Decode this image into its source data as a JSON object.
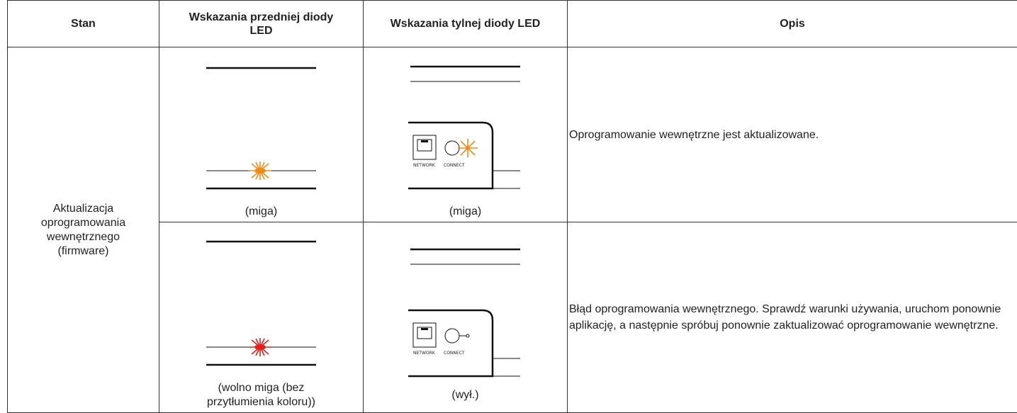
{
  "table": {
    "headers": [
      "Stan",
      "Wskazania przedniej diody LED",
      "Wskazania tylnej diody LED",
      "Opis"
    ],
    "state": "Aktualizacja oprogramowania wewnętrznego (firmware)",
    "rows": [
      {
        "front_caption": "(miga)",
        "rear_caption": "(miga)",
        "description": "Oprogramowanie wewnętrzne jest aktualizowane."
      },
      {
        "front_caption": "(wolno miga (bez przytłumienia koloru))",
        "rear_caption": "(wył.)",
        "description": "Błąd oprogramowania wewnętrznego. Sprawdź warunki używania, uruchom ponownie aplikację, a następnie spróbuj ponownie zaktualizować oprogramowanie wewnętrzne."
      }
    ]
  },
  "port_labels": {
    "network": "NETWORK",
    "connect": "CONNECT"
  }
}
